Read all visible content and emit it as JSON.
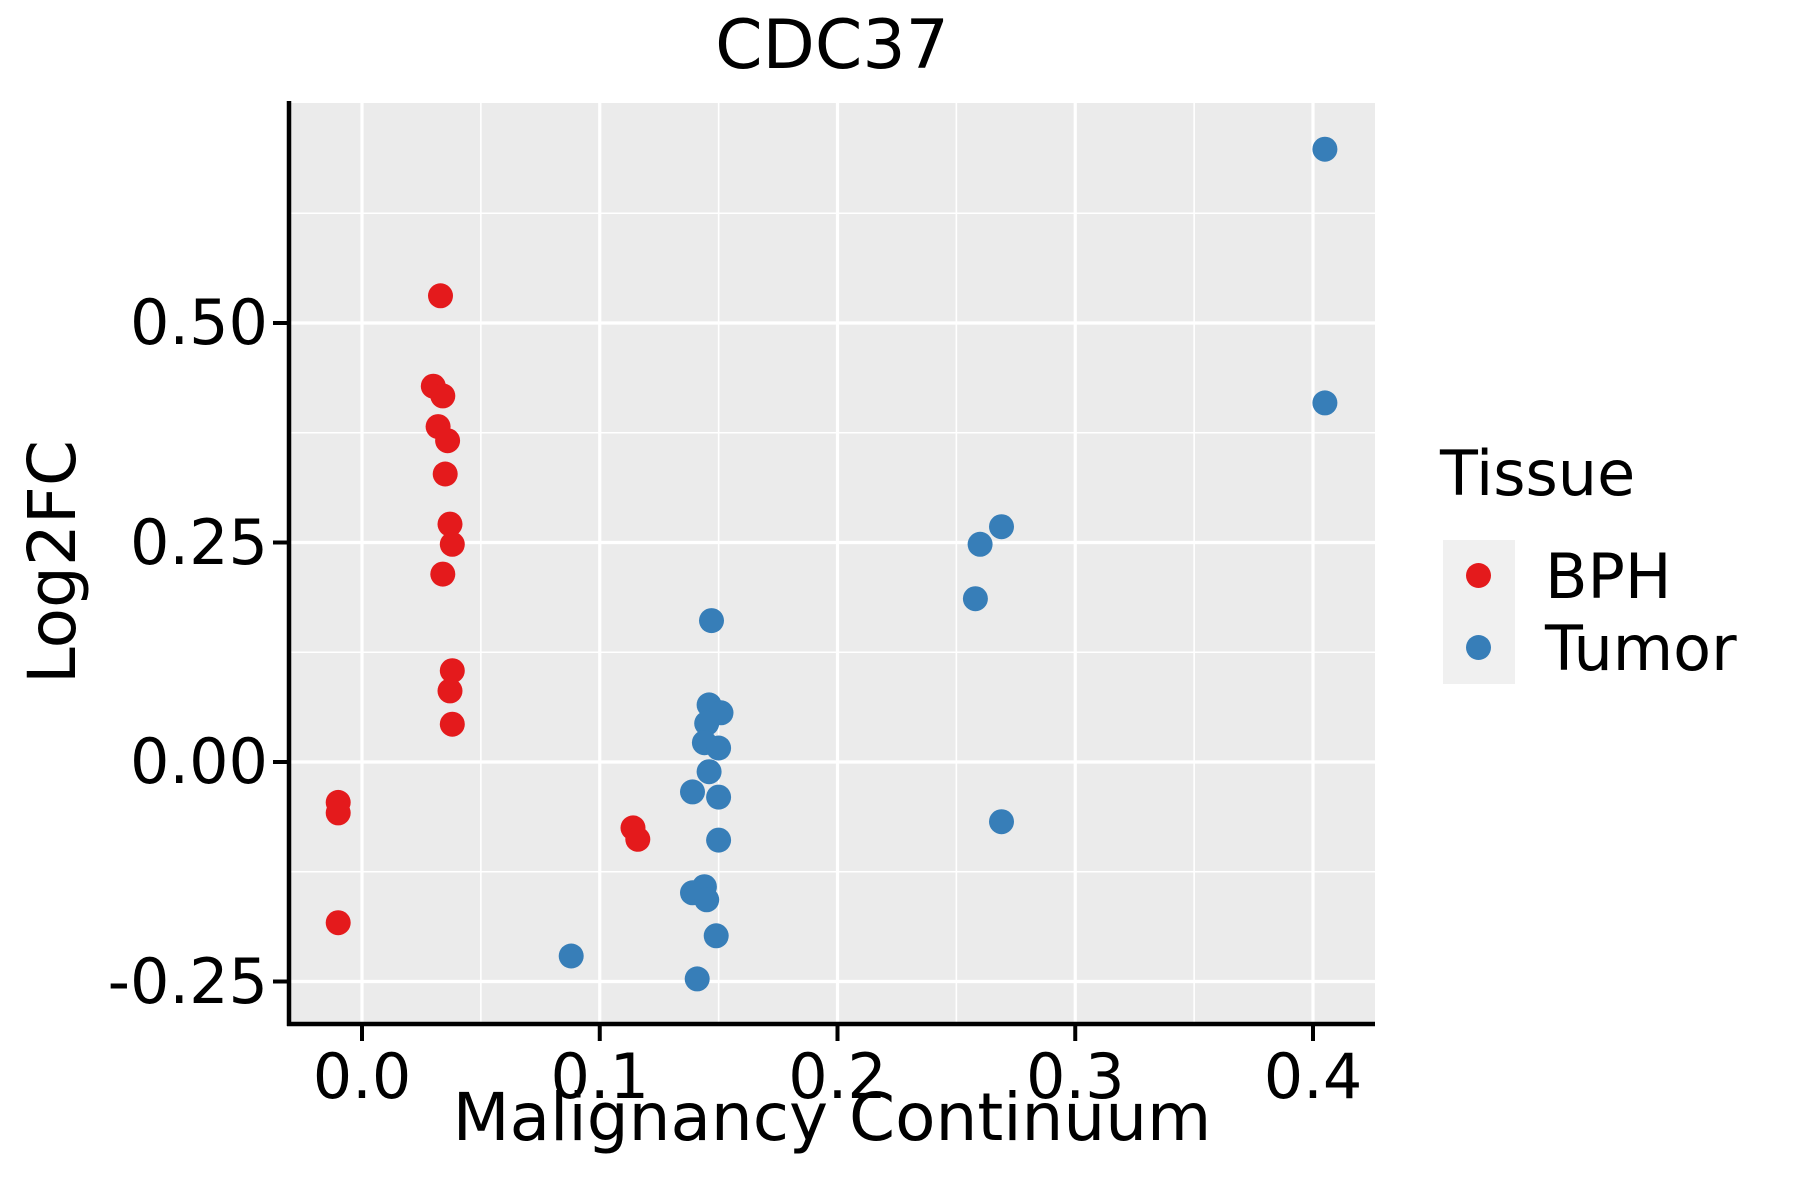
{
  "title": "CDC37",
  "colors": {
    "panel_bg": "#EBEBEB",
    "grid": "#FFFFFF",
    "axis": "#000000",
    "text": "#000000",
    "legend_key_bg": "#F0F0F0",
    "bph": "#E41A1C",
    "tumor": "#377EB8"
  },
  "chart_data": {
    "type": "scatter",
    "title": "CDC37",
    "xlabel": "Malignancy Continuum",
    "ylabel": "Log2FC",
    "xlim": [
      -0.0303,
      0.4261
    ],
    "ylim": [
      -0.296,
      0.7505
    ],
    "grid": true,
    "legend_position": "right",
    "legend_title": "Tissue",
    "x_ticks": [
      0.0,
      0.1,
      0.2,
      0.3,
      0.4
    ],
    "x_tick_labels": [
      "0.0",
      "0.1",
      "0.2",
      "0.3",
      "0.4"
    ],
    "x_minor_ticks": [
      0.05,
      0.15,
      0.25,
      0.35
    ],
    "y_ticks": [
      0.5,
      0.25,
      0.0,
      -0.25
    ],
    "y_tick_labels": [
      "0.50",
      "0.25",
      "0.00",
      "-0.25"
    ],
    "y_minor_ticks": [
      0.625,
      0.375,
      0.125,
      -0.125
    ],
    "series": [
      {
        "name": "BPH",
        "color": "#E41A1C",
        "points": [
          [
            -0.01,
            -0.046
          ],
          [
            -0.01,
            -0.058
          ],
          [
            -0.01,
            -0.183
          ],
          [
            0.033,
            0.531
          ],
          [
            0.03,
            0.428
          ],
          [
            0.034,
            0.417
          ],
          [
            0.032,
            0.382
          ],
          [
            0.036,
            0.366
          ],
          [
            0.035,
            0.328
          ],
          [
            0.037,
            0.271
          ],
          [
            0.038,
            0.248
          ],
          [
            0.034,
            0.214
          ],
          [
            0.038,
            0.104
          ],
          [
            0.037,
            0.081
          ],
          [
            0.038,
            0.043
          ],
          [
            0.114,
            -0.075
          ],
          [
            0.116,
            -0.088
          ]
        ]
      },
      {
        "name": "Tumor",
        "color": "#377EB8",
        "points": [
          [
            0.088,
            -0.221
          ],
          [
            0.147,
            0.161
          ],
          [
            0.146,
            0.065
          ],
          [
            0.151,
            0.056
          ],
          [
            0.145,
            0.044
          ],
          [
            0.144,
            0.022
          ],
          [
            0.15,
            0.016
          ],
          [
            0.146,
            -0.011
          ],
          [
            0.139,
            -0.034
          ],
          [
            0.15,
            -0.04
          ],
          [
            0.15,
            -0.089
          ],
          [
            0.144,
            -0.142
          ],
          [
            0.139,
            -0.149
          ],
          [
            0.145,
            -0.157
          ],
          [
            0.149,
            -0.198
          ],
          [
            0.141,
            -0.247
          ],
          [
            0.26,
            0.248
          ],
          [
            0.269,
            0.268
          ],
          [
            0.258,
            0.186
          ],
          [
            0.269,
            -0.068
          ],
          [
            0.405,
            0.698
          ],
          [
            0.405,
            0.409
          ]
        ]
      }
    ]
  }
}
